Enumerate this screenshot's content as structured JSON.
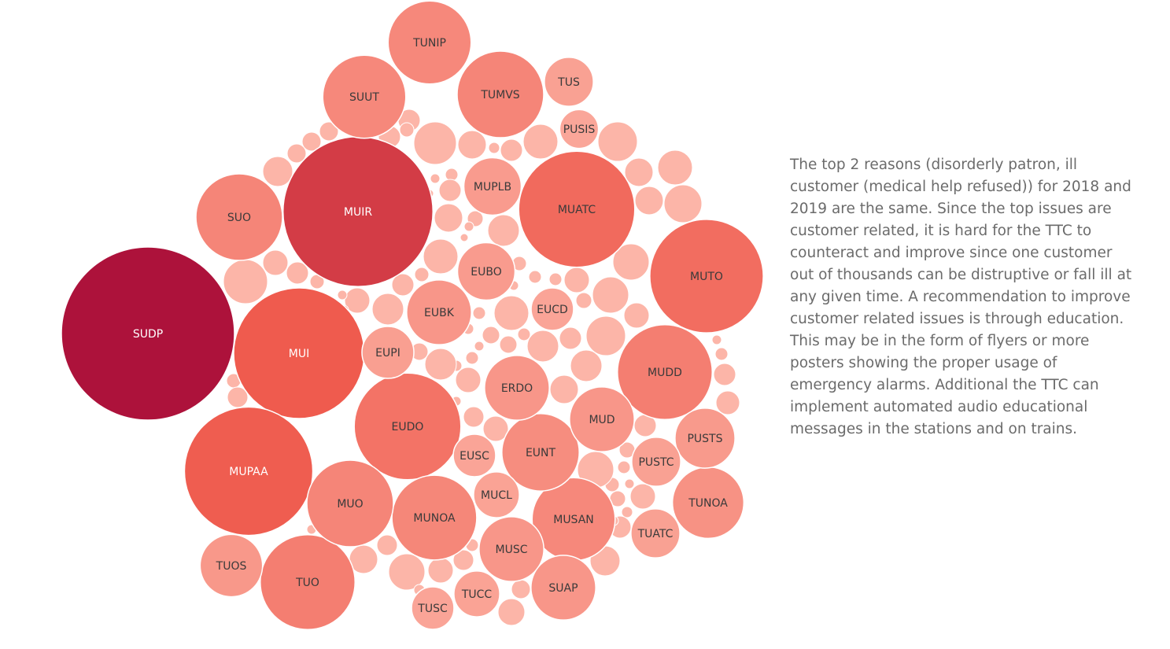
{
  "chart_data": {
    "type": "packed-bubble",
    "title": "",
    "color_scale": {
      "low": "#fcb3a5",
      "mid": "#ef5b4e",
      "high": "#ad123b"
    },
    "bubbles": [
      {
        "label": "SUDP",
        "value": 100
      },
      {
        "label": "MUIR",
        "value": 75
      },
      {
        "label": "MUI",
        "value": 57
      },
      {
        "label": "MUPAA",
        "value": 55
      },
      {
        "label": "MUTO",
        "value": 43
      },
      {
        "label": "MUATC",
        "value": 45
      },
      {
        "label": "EUDO",
        "value": 38
      },
      {
        "label": "MUDD",
        "value": 30
      },
      {
        "label": "MUNOA",
        "value": 24
      },
      {
        "label": "MUSAN",
        "value": 23
      },
      {
        "label": "TUMVS",
        "value": 25
      },
      {
        "label": "TUO",
        "value": 30
      },
      {
        "label": "SUO",
        "value": 25
      },
      {
        "label": "MUO",
        "value": 25
      },
      {
        "label": "TUNIP",
        "value": 23
      },
      {
        "label": "SUUT",
        "value": 23
      },
      {
        "label": "EUNT",
        "value": 20
      },
      {
        "label": "ERDO",
        "value": 14
      },
      {
        "label": "TUNOA",
        "value": 17
      },
      {
        "label": "MUD",
        "value": 14
      },
      {
        "label": "EUBK",
        "value": 14
      },
      {
        "label": "MUPLB",
        "value": 11
      },
      {
        "label": "EUBO",
        "value": 11
      },
      {
        "label": "MUSC",
        "value": 14
      },
      {
        "label": "SUAP",
        "value": 14
      },
      {
        "label": "PUSTS",
        "value": 12
      },
      {
        "label": "TUOS",
        "value": 13
      },
      {
        "label": "PUSTC",
        "value": 8
      },
      {
        "label": "TUATC",
        "value": 8
      },
      {
        "label": "MUCL",
        "value": 7
      },
      {
        "label": "TUCC",
        "value": 7
      },
      {
        "label": "EUPI",
        "value": 9
      },
      {
        "label": "EUCD",
        "value": 6
      },
      {
        "label": "EUSC",
        "value": 6
      },
      {
        "label": "TUS",
        "value": 8
      },
      {
        "label": "PUSIS",
        "value": 5
      },
      {
        "label": "TUSC",
        "value": 6
      }
    ]
  },
  "commentary": "The top 2 reasons (disorderly patron, ill customer (medical help refused)) for 2018 and 2019 are the same. Since the top issues are customer related, it is hard for the TTC to counteract and improve since one customer out of thousands can be distruptive or fall ill at any given time. A recommendation to improve customer related issues is through education. This may be in the form of flyers or more posters showing the proper usage of emergency alarms. Additional the TTC can implement automated audio educational messages in the stations and on trains."
}
